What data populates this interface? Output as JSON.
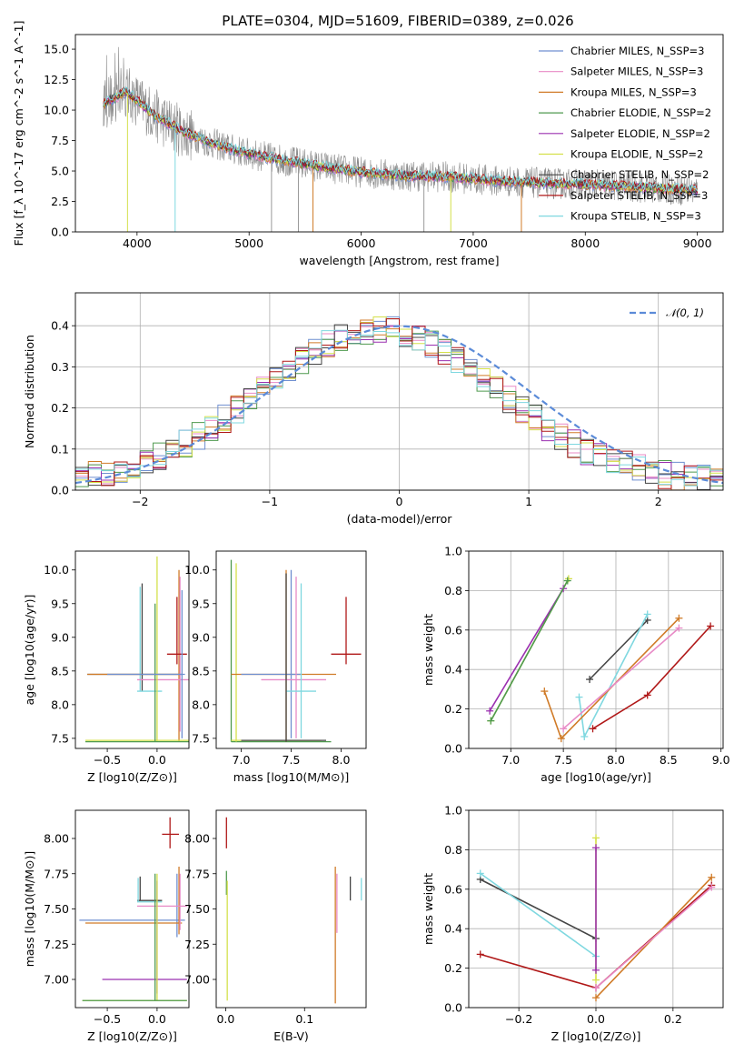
{
  "chart_data": [
    {
      "id": "spectrum",
      "type": "line",
      "title": "PLATE=0304, MJD=51609, FIBERID=0389, z=0.026",
      "xlabel": "wavelength [Angstrom, rest frame]",
      "ylabel": "Flux [f_λ 10^-17 erg cm^-2 s^-1 A^-1]",
      "xlim": [
        3450,
        9230
      ],
      "ylim": [
        0,
        16.2
      ],
      "xticks": [
        4000,
        5000,
        6000,
        7000,
        8000,
        9000
      ],
      "yticks": [
        0.0,
        2.5,
        5.0,
        7.5,
        10.0,
        12.5,
        15.0
      ],
      "continuum": {
        "x": [
          3700,
          3800,
          3900,
          4000,
          4100,
          4200,
          4400,
          4600,
          4800,
          5000,
          5300,
          5600,
          6000,
          6400,
          6800,
          7200,
          7600,
          8000,
          8400,
          8800,
          9000
        ],
        "y": [
          10.5,
          11.0,
          11.5,
          10.8,
          10.0,
          9.3,
          8.3,
          7.5,
          6.9,
          6.4,
          5.9,
          5.4,
          4.9,
          4.6,
          4.5,
          4.2,
          4.0,
          3.9,
          3.7,
          3.5,
          3.4
        ]
      },
      "series": [
        {
          "name": "Chabrier MILES, N_SSP=3",
          "color": "#6f8fd0"
        },
        {
          "name": "Salpeter MILES, N_SSP=3",
          "color": "#e88ac6"
        },
        {
          "name": "Kroupa MILES, N_SSP=3",
          "color": "#d07b28"
        },
        {
          "name": "Chabrier ELODIE, N_SSP=2",
          "color": "#4f9a4f"
        },
        {
          "name": "Salpeter ELODIE, N_SSP=2",
          "color": "#9b30b0"
        },
        {
          "name": "Kroupa ELODIE, N_SSP=2",
          "color": "#d4e04a"
        },
        {
          "name": "Chabrier STELIB, N_SSP=2",
          "color": "#444444"
        },
        {
          "name": "Salpeter STELIB, N_SSP=3",
          "color": "#b01818"
        },
        {
          "name": "Kroupa STELIB, N_SSP=3",
          "color": "#7fd8e0"
        }
      ],
      "legend_placement": "upper right"
    },
    {
      "id": "residuals",
      "type": "histogram",
      "xlabel": "(data-model)/error",
      "ylabel": "Normed distribution",
      "xlim": [
        -2.5,
        2.5
      ],
      "ylim": [
        0,
        0.48
      ],
      "xticks": [
        -2,
        -1,
        0,
        1,
        2
      ],
      "yticks": [
        0.0,
        0.1,
        0.2,
        0.3,
        0.4
      ],
      "legend": "𝒩(0, 1)",
      "normal_color": "#5b8bd8"
    },
    {
      "id": "age_vs_Z",
      "type": "errorbar",
      "xlabel": "Z [log10(Z/Z⊙)]",
      "ylabel": "age  [log10(age/yr)]",
      "xlim": [
        -0.82,
        0.32
      ],
      "ylim": [
        7.35,
        10.28
      ],
      "xticks": [
        -0.5,
        0.0
      ],
      "yticks": [
        7.5,
        8.0,
        8.5,
        9.0,
        9.5,
        10.0
      ]
    },
    {
      "id": "age_vs_mass",
      "type": "errorbar",
      "xlabel": "mass [log10(M/M⊙)]",
      "ylabel": "",
      "xlim": [
        6.75,
        8.25
      ],
      "ylim": [
        7.35,
        10.28
      ],
      "xticks": [
        7.0,
        7.5,
        8.0
      ],
      "yticks": [
        7.5,
        8.0,
        8.5,
        9.0,
        9.5,
        10.0
      ]
    },
    {
      "id": "weight_vs_age",
      "type": "line",
      "xlabel": "age  [log10(age/yr)]",
      "ylabel": "mass weight",
      "xlim": [
        6.6,
        9.02
      ],
      "ylim": [
        0,
        1
      ],
      "xticks": [
        7.0,
        7.5,
        8.0,
        8.5,
        9.0
      ],
      "yticks": [
        0.0,
        0.2,
        0.4,
        0.6,
        0.8,
        1.0
      ],
      "series": [
        {
          "name": "Kroupa ELODIE",
          "color": "#d4e04a",
          "x": [
            6.81,
            7.55
          ],
          "y": [
            0.14,
            0.86
          ]
        },
        {
          "name": "Salpeter ELODIE",
          "color": "#9b30b0",
          "x": [
            6.8,
            7.5
          ],
          "y": [
            0.19,
            0.81
          ]
        },
        {
          "name": "Chabrier ELODIE",
          "color": "#4f9a4f",
          "x": [
            6.81,
            7.54
          ],
          "y": [
            0.14,
            0.85
          ]
        },
        {
          "name": "Chabrier STELIB",
          "color": "#444444",
          "x": [
            7.75,
            8.3
          ],
          "y": [
            0.35,
            0.65
          ]
        },
        {
          "name": "Kroupa STELIB",
          "color": "#7fd8e0",
          "x": [
            7.65,
            7.7,
            8.3
          ],
          "y": [
            0.26,
            0.06,
            0.68
          ]
        },
        {
          "name": "Kroupa MILES",
          "color": "#d07b28",
          "x": [
            7.32,
            7.48,
            8.6
          ],
          "y": [
            0.29,
            0.05,
            0.66
          ]
        },
        {
          "name": "Salpeter MILES",
          "color": "#e88ac6",
          "x": [
            7.5,
            8.6
          ],
          "y": [
            0.1,
            0.61
          ]
        },
        {
          "name": "Salpeter STELIB",
          "color": "#b01818",
          "x": [
            7.78,
            8.3,
            8.9
          ],
          "y": [
            0.1,
            0.27,
            0.62
          ]
        }
      ]
    },
    {
      "id": "mass_vs_Z",
      "type": "errorbar",
      "xlabel": "Z [log10(Z/Z⊙)]",
      "ylabel": "mass [log10(M/M⊙)]",
      "xlim": [
        -0.82,
        0.32
      ],
      "ylim": [
        6.8,
        8.2
      ],
      "xticks": [
        -0.5,
        0.0
      ],
      "yticks": [
        7.0,
        7.25,
        7.5,
        7.75,
        8.0
      ]
    },
    {
      "id": "mass_vs_EBV",
      "type": "errorbar",
      "xlabel": "E(B-V)",
      "ylabel": "",
      "xlim": [
        -0.012,
        0.178
      ],
      "ylim": [
        6.8,
        8.2
      ],
      "xticks": [
        0.0,
        0.1
      ],
      "yticks": [
        7.0,
        7.25,
        7.5,
        7.75,
        8.0
      ]
    },
    {
      "id": "weight_vs_Z",
      "type": "line",
      "xlabel": "Z [log10(Z/Z⊙)]",
      "ylabel": "mass weight",
      "xlim": [
        -0.33,
        0.33
      ],
      "ylim": [
        0,
        1
      ],
      "xticks": [
        -0.2,
        0.0,
        0.2
      ],
      "yticks": [
        0.0,
        0.2,
        0.4,
        0.6,
        0.8,
        1.0
      ],
      "series": [
        {
          "name": "Chabrier STELIB",
          "color": "#444444",
          "x": [
            -0.3,
            0.0
          ],
          "y": [
            0.65,
            0.35
          ]
        },
        {
          "name": "Kroupa STELIB",
          "color": "#7fd8e0",
          "x": [
            -0.3,
            0.0
          ],
          "y": [
            0.68,
            0.26
          ]
        },
        {
          "name": "Salpeter STELIB",
          "color": "#b01818",
          "x": [
            -0.3,
            0.0,
            0.3
          ],
          "y": [
            0.27,
            0.1,
            0.62
          ]
        },
        {
          "name": "Kroupa MILES",
          "color": "#d07b28",
          "x": [
            0.0,
            0.3
          ],
          "y": [
            0.05,
            0.66
          ]
        },
        {
          "name": "Salpeter MILES",
          "color": "#e88ac6",
          "x": [
            0.0,
            0.3
          ],
          "y": [
            0.1,
            0.61
          ]
        },
        {
          "name": "Kroupa ELODIE",
          "color": "#d4e04a",
          "x": [
            0.0,
            0.0
          ],
          "y": [
            0.14,
            0.86
          ]
        },
        {
          "name": "Salpeter ELODIE",
          "color": "#9b30b0",
          "x": [
            0.0,
            0.0
          ],
          "y": [
            0.19,
            0.81
          ]
        }
      ]
    }
  ]
}
